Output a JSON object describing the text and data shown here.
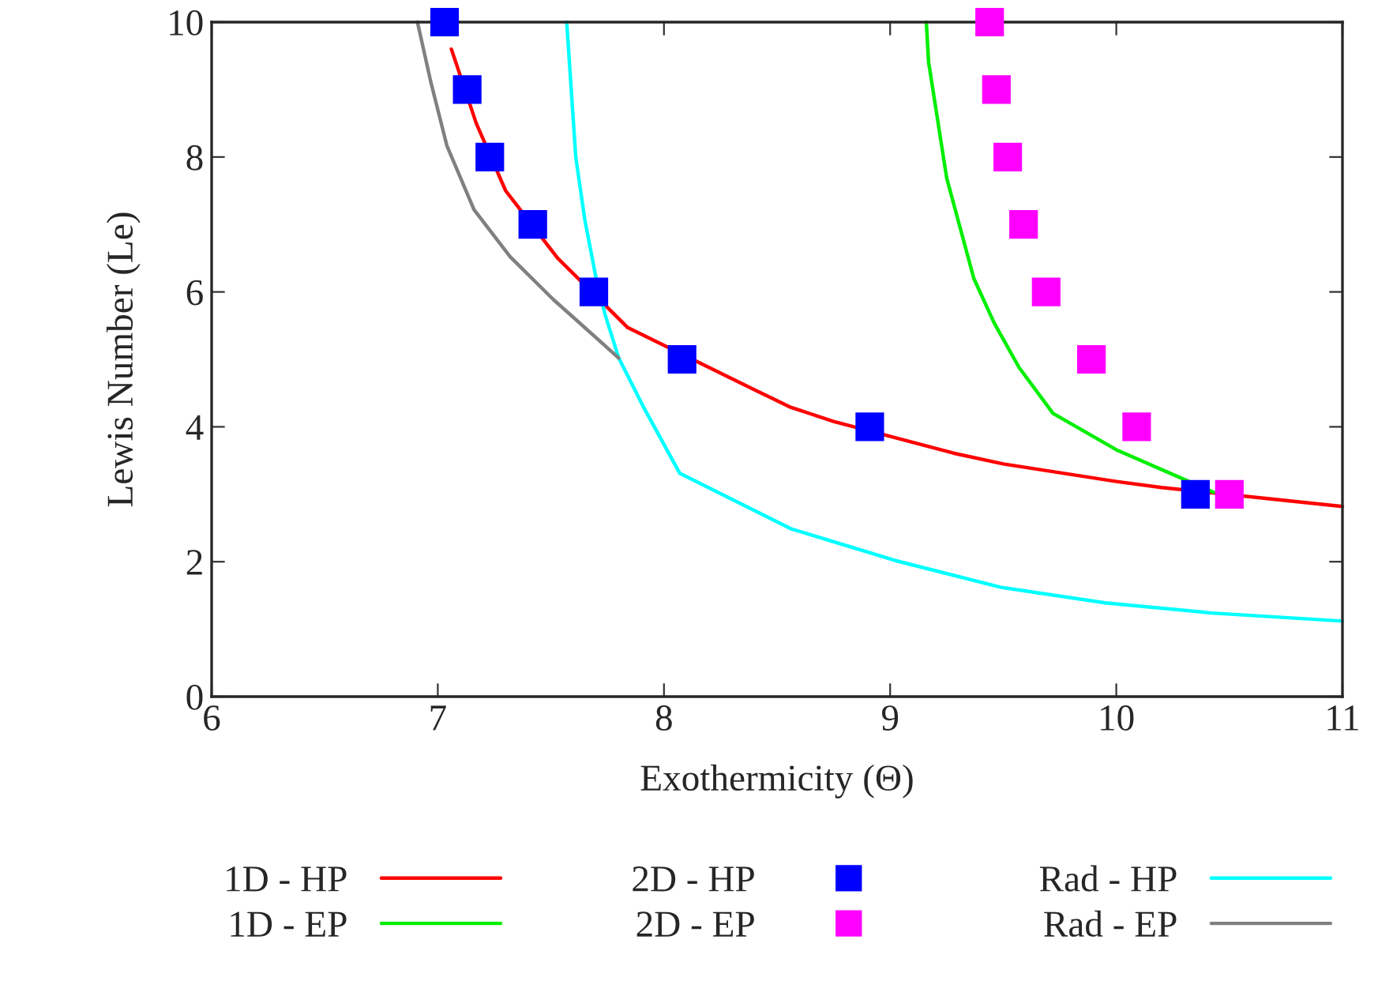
{
  "chart_data": {
    "type": "line",
    "xlabel": "Exothermicity (Θ)",
    "ylabel": "Lewis Number (Le)",
    "xlim": [
      6,
      11
    ],
    "ylim": [
      0,
      10
    ],
    "xticks": [
      6,
      7,
      8,
      9,
      10,
      11
    ],
    "yticks": [
      0,
      2,
      4,
      6,
      8,
      10
    ],
    "grid": false,
    "legend": "bottom",
    "series": [
      {
        "name": "1D - HP",
        "color": "#ff0000",
        "x": [
          7.06,
          7.17,
          7.3,
          7.53,
          7.84,
          8.4,
          8.56,
          8.75,
          9.28,
          9.5,
          10.0,
          10.2,
          11.0
        ],
        "values": [
          9.6,
          8.5,
          7.5,
          6.5,
          5.47,
          4.55,
          4.29,
          4.08,
          3.61,
          3.45,
          3.19,
          3.1,
          2.82
        ]
      },
      {
        "name": "1D - EP",
        "color": "#00ee00",
        "x": [
          9.16,
          9.17,
          9.25,
          9.37,
          9.46,
          9.57,
          9.72,
          10.0,
          10.43
        ],
        "values": [
          10,
          9.41,
          7.69,
          6.2,
          5.54,
          4.88,
          4.2,
          3.66,
          3.03
        ]
      },
      {
        "name": "2D - HP",
        "type": "scatter",
        "marker": "square",
        "color": "#0000ff",
        "x": [
          7.03,
          7.13,
          7.23,
          7.42,
          7.69,
          8.08,
          8.91,
          10.35
        ],
        "values": [
          10,
          9,
          8,
          7,
          6,
          5,
          4,
          3
        ]
      },
      {
        "name": "2D - EP",
        "type": "scatter",
        "marker": "square",
        "color": "#ff00ff",
        "x": [
          9.44,
          9.47,
          9.52,
          9.59,
          9.69,
          9.89,
          10.09,
          10.5
        ],
        "values": [
          10,
          9,
          8,
          7,
          6,
          5,
          4,
          3
        ]
      },
      {
        "name": "Rad - HP",
        "color": "#00ffff",
        "x": [
          7.57,
          7.61,
          7.65,
          7.7,
          7.74,
          7.8,
          7.91,
          8.07,
          8.56,
          9.02,
          9.49,
          9.95,
          10.42,
          11.0
        ],
        "values": [
          10,
          8.0,
          7.07,
          6.2,
          5.66,
          5.02,
          4.29,
          3.31,
          2.49,
          2.02,
          1.62,
          1.39,
          1.24,
          1.12
        ]
      },
      {
        "name": "Rad - EP",
        "color": "#808080",
        "x": [
          6.91,
          6.97,
          7.04,
          7.16,
          7.32,
          7.51,
          7.8
        ],
        "values": [
          10,
          9.1,
          8.17,
          7.22,
          6.52,
          5.89,
          5.02
        ]
      }
    ]
  }
}
